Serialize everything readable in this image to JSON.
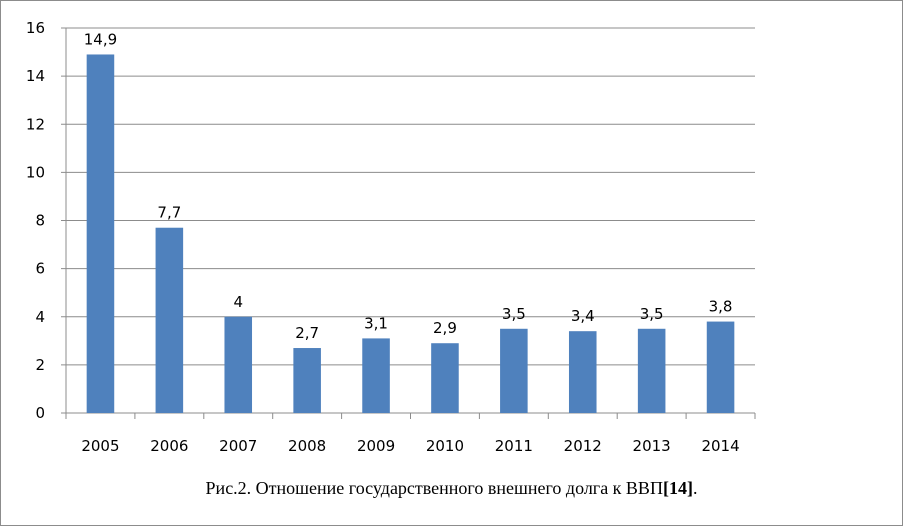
{
  "chart_data": {
    "type": "bar",
    "categories": [
      "2005",
      "2006",
      "2007",
      "2008",
      "2009",
      "2010",
      "2011",
      "2012",
      "2013",
      "2014"
    ],
    "values": [
      14.9,
      7.7,
      4,
      2.7,
      3.1,
      2.9,
      3.5,
      3.4,
      3.5,
      3.8
    ],
    "data_labels": [
      "14,9",
      "7,7",
      "4",
      "2,7",
      "3,1",
      "2,9",
      "3,5",
      "3,4",
      "3,5",
      "3,8"
    ],
    "ylim": [
      0,
      16
    ],
    "yticks": [
      "0",
      "2",
      "4",
      "6",
      "8",
      "10",
      "12",
      "14",
      "16"
    ],
    "grid": true,
    "bar_color": "#4f81bd"
  },
  "caption": {
    "main": "Рис.2. Отношение государственного внешнего долга к ВВП",
    "ref": "[14]",
    "end": "."
  }
}
